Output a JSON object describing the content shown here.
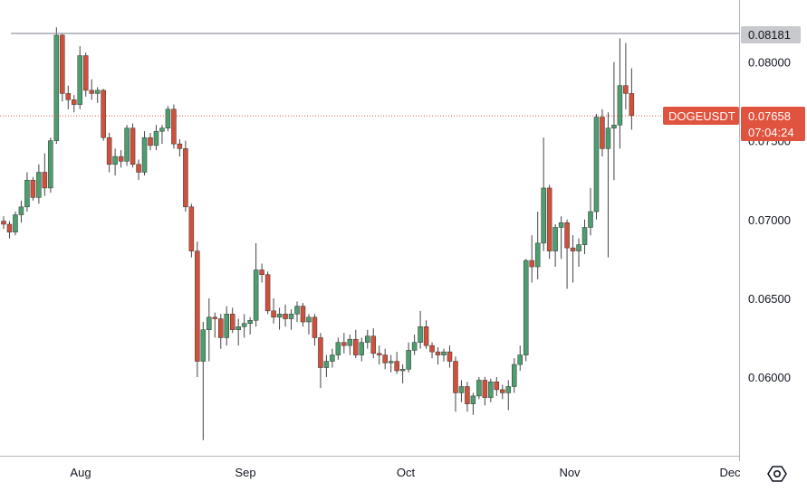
{
  "symbol": "DOGEUSDT",
  "last_price": "0.07658",
  "countdown": "07:04:24",
  "horizontal_line_label": "0.08181",
  "colors": {
    "up": "#26a69a",
    "up_fill": "#4c9e6e",
    "down": "#d0503c",
    "wick": "#444444",
    "price_tag": "#e0533e",
    "hline_tag": "#c8c9cd",
    "axis": "#131722"
  },
  "icons": {
    "settings": "hexagon-gear-icon"
  },
  "chart_data": {
    "type": "candlestick",
    "title": "",
    "y_axis_ticks": [
      "0.08000",
      "0.07500",
      "0.07000",
      "0.06500",
      "0.06000"
    ],
    "y_range": [
      0.0553,
      0.0865
    ],
    "x_axis_ticks": [
      "Aug",
      "Sep",
      "Oct",
      "Nov",
      "Dec"
    ],
    "horizontal_line": 0.08181,
    "last_price": 0.07658,
    "candles": [
      [
        0.0699,
        0.0702,
        0.0694,
        0.0697
      ],
      [
        0.0697,
        0.0699,
        0.0688,
        0.0692
      ],
      [
        0.0692,
        0.0705,
        0.069,
        0.0703
      ],
      [
        0.0703,
        0.0712,
        0.0698,
        0.0708
      ],
      [
        0.0708,
        0.073,
        0.0705,
        0.0725
      ],
      [
        0.0725,
        0.0727,
        0.0712,
        0.0714
      ],
      [
        0.0714,
        0.0735,
        0.071,
        0.073
      ],
      [
        0.073,
        0.0742,
        0.0715,
        0.072
      ],
      [
        0.072,
        0.0752,
        0.0717,
        0.075
      ],
      [
        0.075,
        0.0822,
        0.0748,
        0.0817
      ],
      [
        0.0817,
        0.0818,
        0.0775,
        0.078
      ],
      [
        0.078,
        0.0785,
        0.077,
        0.0776
      ],
      [
        0.0776,
        0.0779,
        0.0768,
        0.0773
      ],
      [
        0.0773,
        0.081,
        0.077,
        0.0804
      ],
      [
        0.0804,
        0.0806,
        0.0778,
        0.0782
      ],
      [
        0.0782,
        0.0789,
        0.0776,
        0.078
      ],
      [
        0.078,
        0.0784,
        0.0774,
        0.0782
      ],
      [
        0.0782,
        0.0783,
        0.075,
        0.0752
      ],
      [
        0.0752,
        0.0755,
        0.073,
        0.0735
      ],
      [
        0.0735,
        0.0745,
        0.0728,
        0.074
      ],
      [
        0.074,
        0.0744,
        0.0733,
        0.0737
      ],
      [
        0.0737,
        0.076,
        0.0734,
        0.0758
      ],
      [
        0.0758,
        0.0761,
        0.0733,
        0.0735
      ],
      [
        0.0735,
        0.0738,
        0.0725,
        0.073
      ],
      [
        0.073,
        0.0756,
        0.0728,
        0.0752
      ],
      [
        0.0752,
        0.0755,
        0.0744,
        0.0747
      ],
      [
        0.0747,
        0.076,
        0.0744,
        0.0756
      ],
      [
        0.0756,
        0.076,
        0.0748,
        0.0758
      ],
      [
        0.0758,
        0.0772,
        0.0756,
        0.077
      ],
      [
        0.077,
        0.0773,
        0.0745,
        0.0748
      ],
      [
        0.0748,
        0.0751,
        0.074,
        0.0745
      ],
      [
        0.0745,
        0.075,
        0.0705,
        0.0708
      ],
      [
        0.0708,
        0.071,
        0.0676,
        0.068
      ],
      [
        0.068,
        0.0686,
        0.06,
        0.061
      ],
      [
        0.061,
        0.0635,
        0.056,
        0.063
      ],
      [
        0.063,
        0.065,
        0.061,
        0.0638
      ],
      [
        0.0638,
        0.0641,
        0.0625,
        0.0637
      ],
      [
        0.0637,
        0.064,
        0.0618,
        0.0625
      ],
      [
        0.0625,
        0.0645,
        0.062,
        0.064
      ],
      [
        0.064,
        0.0644,
        0.0628,
        0.063
      ],
      [
        0.063,
        0.0637,
        0.062,
        0.0632
      ],
      [
        0.0632,
        0.064,
        0.0625,
        0.0634
      ],
      [
        0.0634,
        0.0638,
        0.0627,
        0.0636
      ],
      [
        0.0636,
        0.0685,
        0.0632,
        0.0668
      ],
      [
        0.0668,
        0.0672,
        0.066,
        0.0665
      ],
      [
        0.0665,
        0.0667,
        0.064,
        0.0642
      ],
      [
        0.0642,
        0.065,
        0.0634,
        0.0638
      ],
      [
        0.0638,
        0.0644,
        0.063,
        0.064
      ],
      [
        0.064,
        0.0646,
        0.0632,
        0.0637
      ],
      [
        0.0637,
        0.0643,
        0.063,
        0.064
      ],
      [
        0.064,
        0.0648,
        0.0635,
        0.0645
      ],
      [
        0.0645,
        0.0647,
        0.0632,
        0.0635
      ],
      [
        0.0635,
        0.064,
        0.0627,
        0.0638
      ],
      [
        0.0638,
        0.064,
        0.062,
        0.0625
      ],
      [
        0.0625,
        0.0628,
        0.0593,
        0.0606
      ],
      [
        0.0606,
        0.0614,
        0.06,
        0.061
      ],
      [
        0.061,
        0.0618,
        0.0606,
        0.0614
      ],
      [
        0.0614,
        0.0625,
        0.0611,
        0.0622
      ],
      [
        0.0622,
        0.0628,
        0.0615,
        0.062
      ],
      [
        0.062,
        0.0627,
        0.0614,
        0.0624
      ],
      [
        0.0624,
        0.063,
        0.0612,
        0.0614
      ],
      [
        0.0614,
        0.0625,
        0.061,
        0.0622
      ],
      [
        0.0622,
        0.063,
        0.0618,
        0.0626
      ],
      [
        0.0626,
        0.0631,
        0.0612,
        0.0615
      ],
      [
        0.0615,
        0.062,
        0.0608,
        0.0614
      ],
      [
        0.0614,
        0.0618,
        0.0605,
        0.0609
      ],
      [
        0.0609,
        0.0614,
        0.0603,
        0.061
      ],
      [
        0.061,
        0.0616,
        0.0602,
        0.0604
      ],
      [
        0.0604,
        0.0608,
        0.0596,
        0.0605
      ],
      [
        0.0605,
        0.0622,
        0.0603,
        0.0617
      ],
      [
        0.0617,
        0.0627,
        0.0614,
        0.0622
      ],
      [
        0.0622,
        0.0642,
        0.0618,
        0.0632
      ],
      [
        0.0632,
        0.0636,
        0.0618,
        0.062
      ],
      [
        0.062,
        0.0622,
        0.0612,
        0.0616
      ],
      [
        0.0616,
        0.0619,
        0.0608,
        0.0614
      ],
      [
        0.0614,
        0.0618,
        0.061,
        0.0616
      ],
      [
        0.0616,
        0.062,
        0.0606,
        0.061
      ],
      [
        0.061,
        0.0613,
        0.0578,
        0.059
      ],
      [
        0.059,
        0.0598,
        0.0584,
        0.0594
      ],
      [
        0.0594,
        0.0597,
        0.0578,
        0.0583
      ],
      [
        0.0583,
        0.059,
        0.0576,
        0.0588
      ],
      [
        0.0588,
        0.06,
        0.0586,
        0.0598
      ],
      [
        0.0598,
        0.06,
        0.0582,
        0.0587
      ],
      [
        0.0587,
        0.0599,
        0.0584,
        0.0597
      ],
      [
        0.0597,
        0.06,
        0.0588,
        0.0592
      ],
      [
        0.0592,
        0.0595,
        0.0586,
        0.059
      ],
      [
        0.059,
        0.0598,
        0.0579,
        0.0594
      ],
      [
        0.0594,
        0.0612,
        0.059,
        0.0608
      ],
      [
        0.0608,
        0.062,
        0.0604,
        0.0614
      ],
      [
        0.0614,
        0.0675,
        0.061,
        0.0674
      ],
      [
        0.0674,
        0.069,
        0.066,
        0.067
      ],
      [
        0.067,
        0.0705,
        0.0662,
        0.0685
      ],
      [
        0.0685,
        0.0752,
        0.068,
        0.072
      ],
      [
        0.072,
        0.0722,
        0.0675,
        0.068
      ],
      [
        0.068,
        0.0697,
        0.067,
        0.0695
      ],
      [
        0.0695,
        0.0702,
        0.0675,
        0.0698
      ],
      [
        0.0698,
        0.07,
        0.0656,
        0.0682
      ],
      [
        0.0682,
        0.069,
        0.066,
        0.068
      ],
      [
        0.068,
        0.0688,
        0.067,
        0.0684
      ],
      [
        0.0684,
        0.07,
        0.0678,
        0.0695
      ],
      [
        0.0695,
        0.072,
        0.069,
        0.0705
      ],
      [
        0.0705,
        0.0767,
        0.07,
        0.0765
      ],
      [
        0.0765,
        0.077,
        0.074,
        0.0745
      ],
      [
        0.0745,
        0.0768,
        0.0676,
        0.0758
      ],
      [
        0.0758,
        0.08,
        0.0725,
        0.076
      ],
      [
        0.076,
        0.0815,
        0.0745,
        0.0785
      ],
      [
        0.0785,
        0.0812,
        0.077,
        0.078
      ],
      [
        0.078,
        0.0796,
        0.0757,
        0.0766
      ]
    ]
  }
}
